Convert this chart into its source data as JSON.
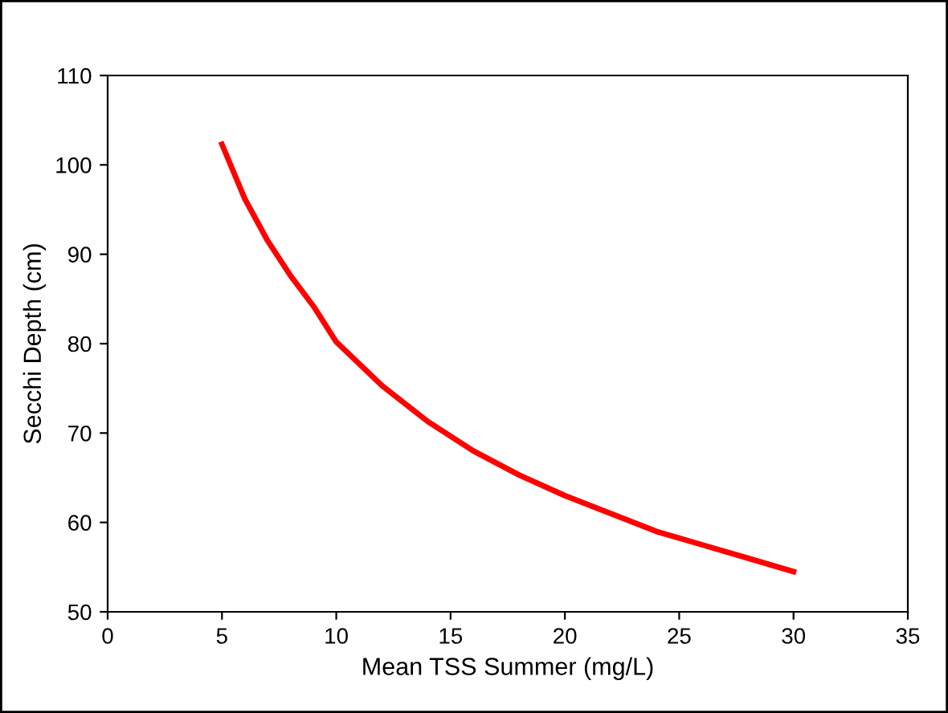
{
  "chart_data": {
    "type": "line",
    "xlabel": "Mean TSS Summer (mg/L)",
    "ylabel": "Secchi Depth (cm)",
    "xlim": [
      0,
      35
    ],
    "xticks": [
      0,
      5,
      10,
      15,
      20,
      25,
      30,
      35
    ],
    "ylim": [
      50,
      110
    ],
    "yticks": [
      50,
      60,
      70,
      80,
      90,
      100,
      110
    ],
    "grid": false,
    "legend": false,
    "marker": "none",
    "line_style": "solid",
    "series": [
      {
        "color": "#ff0000",
        "x": [
          5,
          6,
          7,
          8,
          9,
          10,
          12,
          14,
          16,
          18,
          20,
          22,
          24,
          26,
          28,
          30
        ],
        "values": [
          102.3,
          96.2,
          91.5,
          87.6,
          84.2,
          80.2,
          75.3,
          71.3,
          68.0,
          65.3,
          63.0,
          61.0,
          59.0,
          57.5,
          56.0,
          54.5
        ]
      }
    ]
  }
}
